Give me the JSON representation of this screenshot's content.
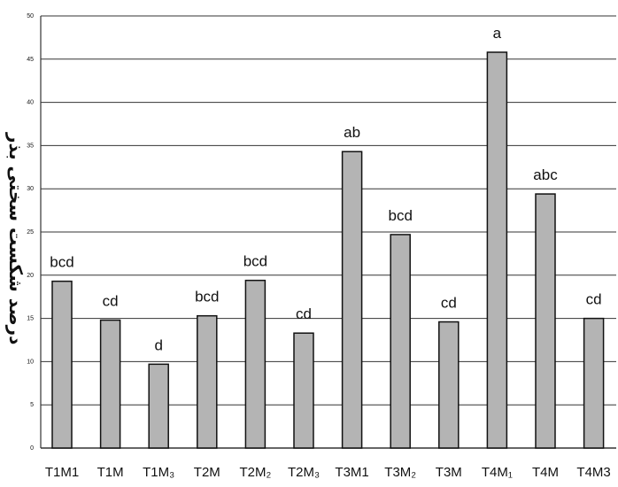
{
  "chart_data": {
    "type": "bar",
    "title": "",
    "xlabel": "",
    "ylabel": "درصد شکست سختی بذر",
    "ylim": [
      0,
      50
    ],
    "yticks": [
      0,
      5,
      10,
      15,
      20,
      25,
      30,
      35,
      40,
      45,
      50
    ],
    "grid": true,
    "categories": [
      "T1M1",
      "T1M",
      "T1M₃",
      "T2M",
      "T2M₂",
      "T2M₃",
      "T3M1",
      "T3M₂",
      "T3M",
      "T4M₁",
      "T4M",
      "T4M3"
    ],
    "values": [
      19.3,
      14.8,
      9.7,
      15.3,
      19.4,
      13.3,
      34.3,
      24.7,
      14.6,
      45.8,
      29.4,
      15.0
    ],
    "data_labels": [
      "bcd",
      "cd",
      "d",
      "bcd",
      "bcd",
      "cd",
      "ab",
      "bcd",
      "cd",
      "a",
      "abc",
      "cd"
    ],
    "colors": {
      "bar_fill": "#b4b4b4",
      "bar_stroke": "#111111",
      "grid": "#333333",
      "text": "#111111"
    }
  }
}
